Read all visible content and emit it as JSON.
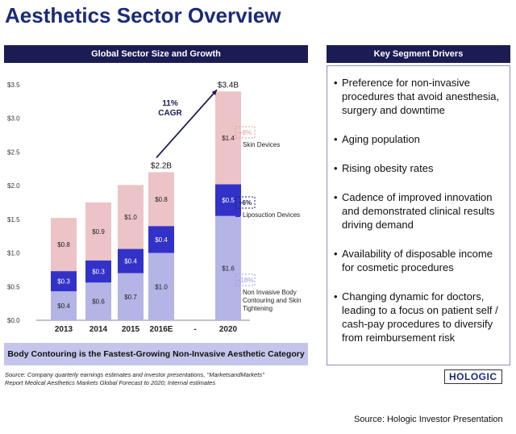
{
  "page_title": "Aesthetics Sector Overview",
  "left_header": "Global Sector Size and Growth",
  "right_header": "Key Segment Drivers",
  "drivers": [
    "Preference for non-invasive procedures that avoid anesthesia, surgery and downtime",
    "Aging population",
    "Rising obesity rates",
    "Cadence of improved innovation and demonstrated clinical results driving demand",
    "Availability of disposable income for cosmetic procedures",
    "Changing dynamic for doctors, leading to a focus on patient self / cash-pay procedures to diversify from reimbursement risk"
  ],
  "banner": "Body Contouring is the Fastest-Growing Non-Invasive Aesthetic Category",
  "source_line1": "Source: Company quarterly earnings estimates and investor presentations, \"MarketsandMarkets\"",
  "source_line2": "Report Medical Aesthetics Markets Global Forecast to 2020; Internal estimates",
  "logo": "HOLOGIC",
  "footer": "Source: Hologic Investor Presentation",
  "colors": {
    "title": "#1a2b78",
    "header_bg": "#1c1c55",
    "skin": "#ecc3c6",
    "lipo": "#3232c8",
    "body": "#b4b4e6"
  },
  "chart_data": {
    "type": "bar",
    "stacked": true,
    "categories": [
      "2013",
      "2014",
      "2015",
      "2016E",
      "-",
      "2020"
    ],
    "ylim": [
      0,
      3.5
    ],
    "yticks": [
      "$0.0",
      "$0.5",
      "$1.0",
      "$1.5",
      "$2.0",
      "$2.5",
      "$3.0",
      "$3.5"
    ],
    "series": [
      {
        "name": "Non Invasive Body Contouring and Skin Tightening",
        "legend_lines": [
          "Non Invasive Body",
          "Contouring and Skin",
          "Tightening"
        ],
        "growth": "+18%",
        "color": "#b4b4e6",
        "values": [
          0.43,
          0.56,
          0.7,
          1.0,
          null,
          1.55
        ],
        "labels": [
          "$0.4",
          "$0.6",
          "$0.7",
          "$1.0",
          "",
          "$1.6"
        ]
      },
      {
        "name": "Liposuction Devices",
        "legend_lines": [
          "Liposuction Devices"
        ],
        "growth": "+6%",
        "color": "#3232c8",
        "values": [
          0.3,
          0.33,
          0.36,
          0.4,
          null,
          0.47
        ],
        "labels": [
          "$0.3",
          "$0.3",
          "$0.4",
          "$0.4",
          "",
          "$0.5"
        ]
      },
      {
        "name": "Skin Devices",
        "legend_lines": [
          "Skin Devices"
        ],
        "growth": "+8%",
        "color": "#ecc3c6",
        "values": [
          0.79,
          0.86,
          0.95,
          0.8,
          null,
          1.38
        ],
        "labels": [
          "$0.8",
          "$0.9",
          "$1.0",
          "$0.8",
          "",
          "$1.4"
        ]
      }
    ],
    "annotations": {
      "start_total": "$2.2B",
      "end_total": "$3.4B",
      "cagr_value": "11%",
      "cagr_label": "CAGR"
    }
  }
}
